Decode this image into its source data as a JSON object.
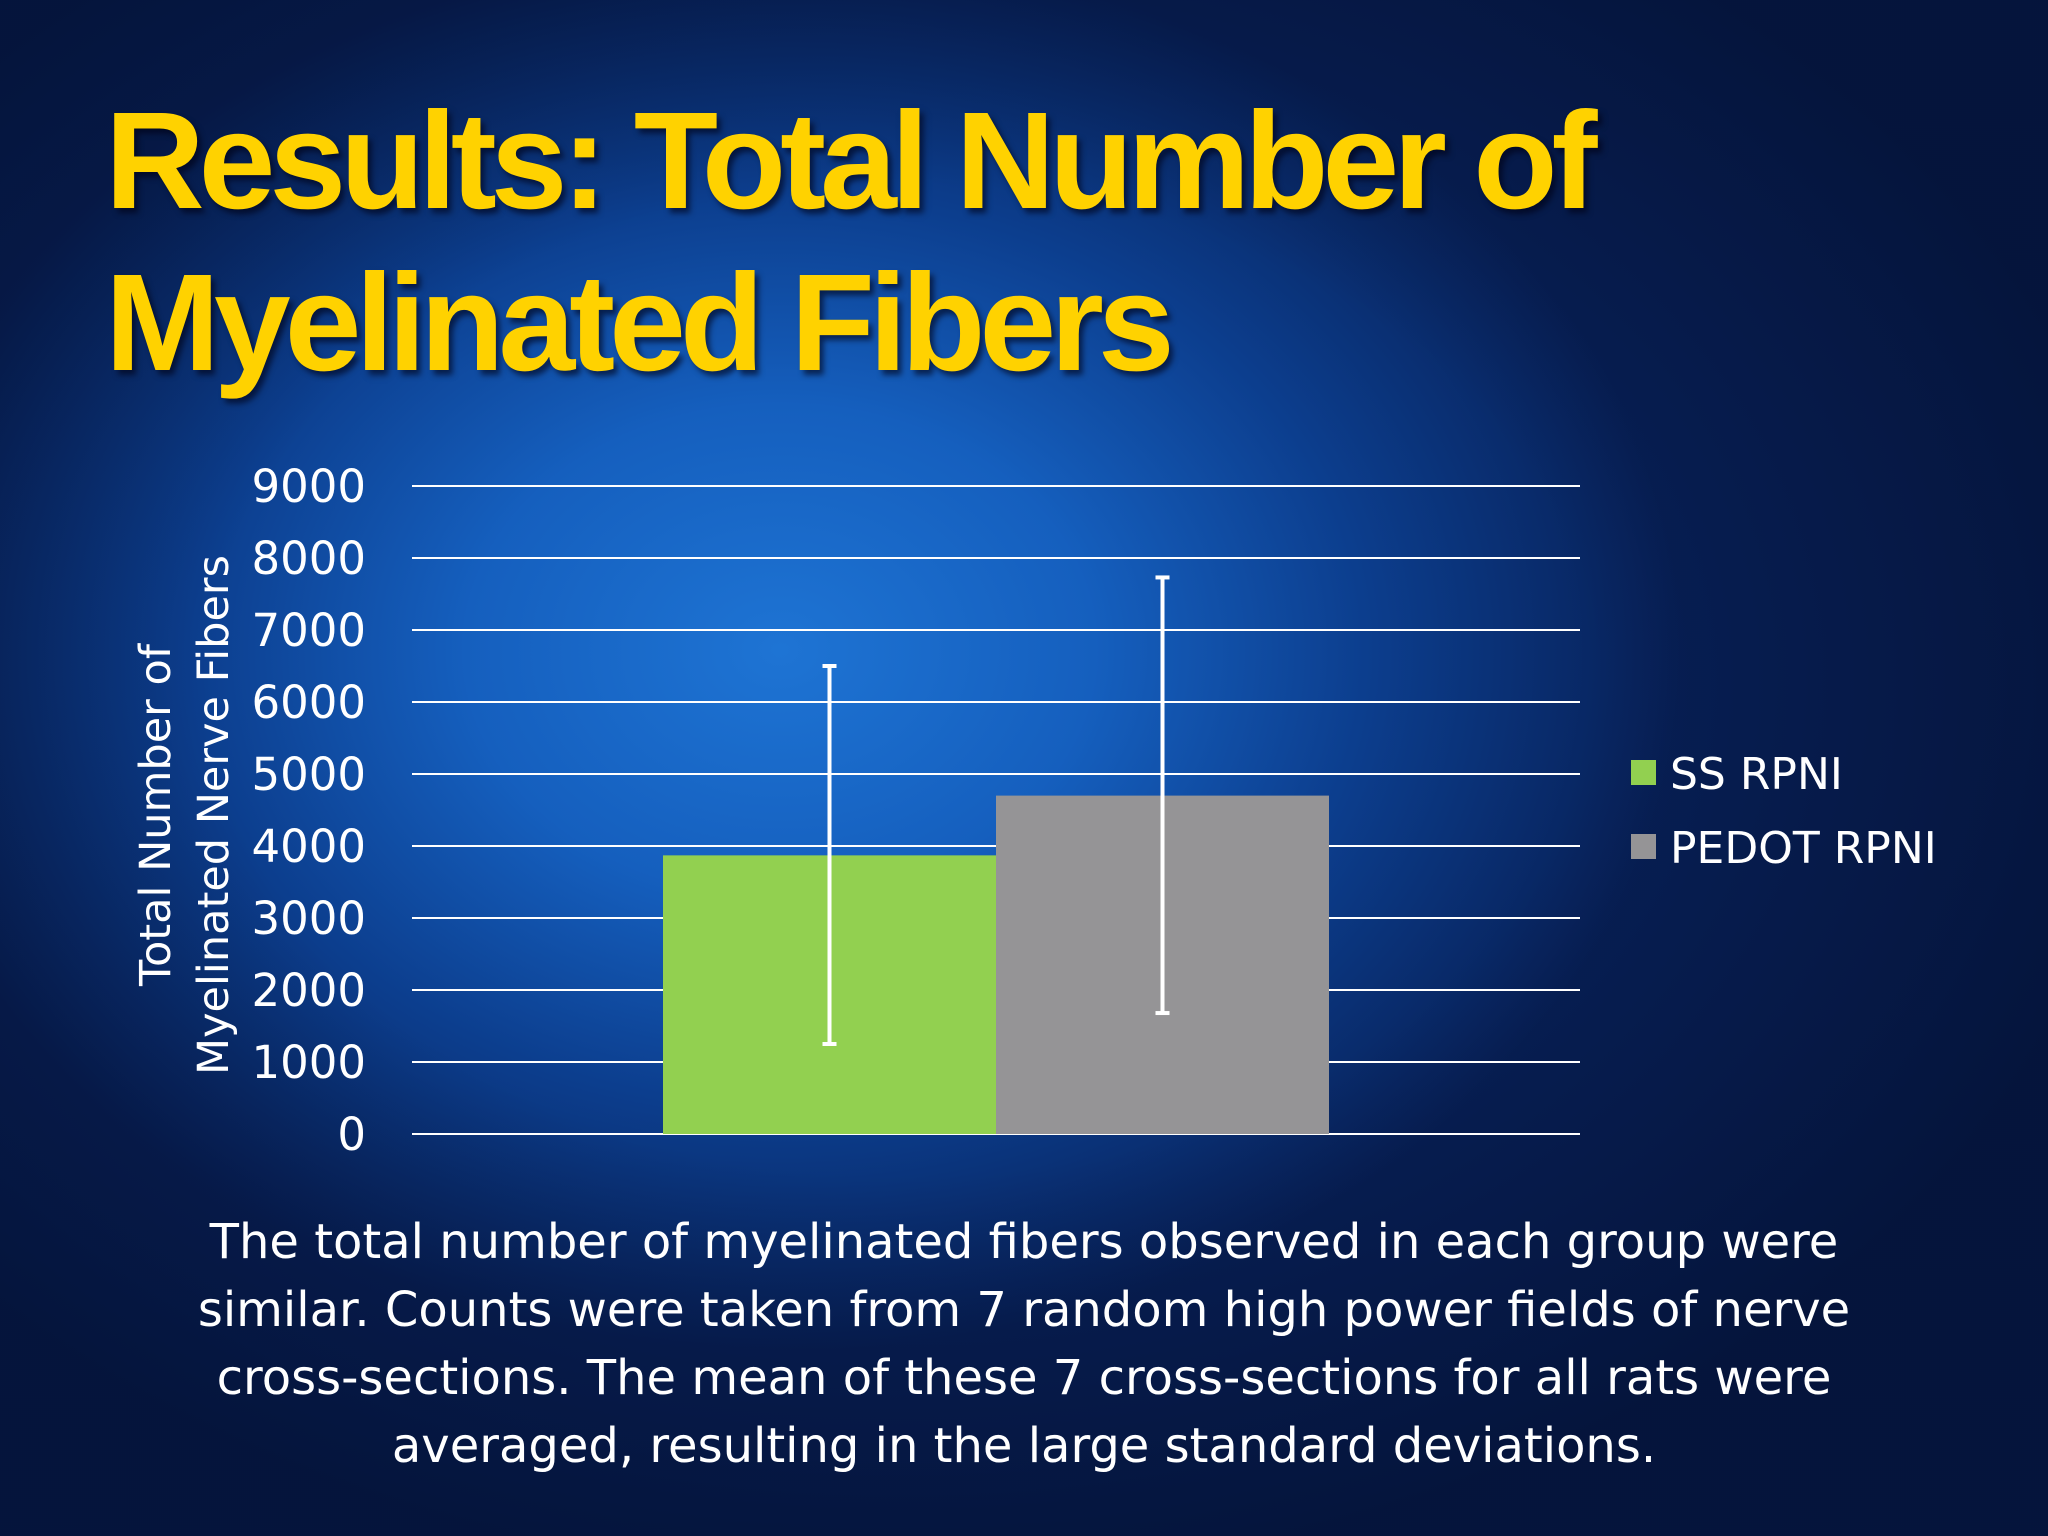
{
  "slide": {
    "title_line1": "Results: Total Number of",
    "title_line2": "Myelinated Fibers",
    "caption": "The total number of myelinated fibers observed in each group were similar. Counts were taken from 7 random high power fields of nerve cross-sections. The mean of these 7 cross-sections for all rats were averaged, resulting in the  large standard deviations."
  },
  "colors": {
    "title": "#ffd200",
    "ss_rpni": "#92d050",
    "pedot_rpni": "#959496",
    "gridline": "#ffffff",
    "text": "#ffffff"
  },
  "chart_data": {
    "type": "bar",
    "title": "",
    "ylabel_line1": "Total Number of",
    "ylabel_line2": "Myelinated Nerve Fibers",
    "xlabel": "",
    "ylim": [
      0,
      9000
    ],
    "yticks": [
      0,
      1000,
      2000,
      3000,
      4000,
      5000,
      6000,
      7000,
      8000,
      9000
    ],
    "grid": true,
    "legend_position": "right",
    "series": [
      {
        "name": "SS RPNI",
        "value": 3870,
        "error_low": 1250,
        "error_high": 6500,
        "color": "#92d050"
      },
      {
        "name": "PEDOT RPNI",
        "value": 4700,
        "error_low": 1680,
        "error_high": 7730,
        "color": "#959496"
      }
    ]
  }
}
